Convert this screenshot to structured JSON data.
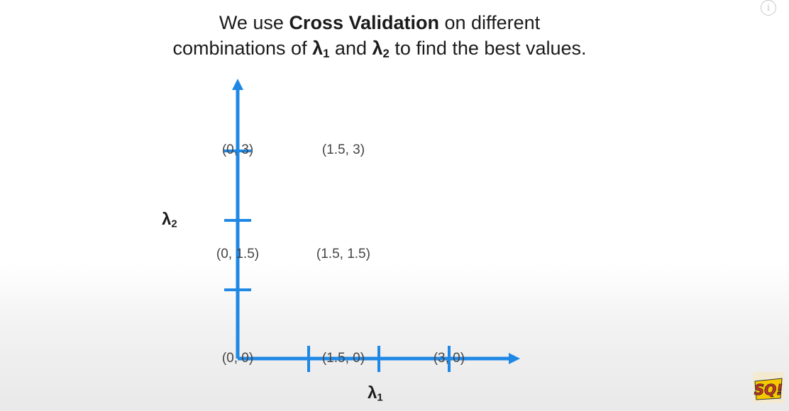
{
  "title": {
    "line1_pre": "We use ",
    "line1_bold": "Cross Validation",
    "line1_post": " on different",
    "line2_pre": "combinations of ",
    "lambda": "λ",
    "sub1": "1",
    "line2_mid": " and ",
    "sub2": "2",
    "line2_post": " to find the best values."
  },
  "axes": {
    "x_label_symbol": "λ",
    "x_label_sub": "1",
    "y_label_symbol": "λ",
    "y_label_sub": "2",
    "color": "#1f88e5"
  },
  "points": [
    {
      "label": "(0, 3)",
      "lambda1": 0,
      "lambda2": 3
    },
    {
      "label": "(1.5, 3)",
      "lambda1": 1.5,
      "lambda2": 3
    },
    {
      "label": "(0, 1.5)",
      "lambda1": 0,
      "lambda2": 1.5
    },
    {
      "label": "(1.5, 1.5)",
      "lambda1": 1.5,
      "lambda2": 1.5
    },
    {
      "label": "(0, 0)",
      "lambda1": 0,
      "lambda2": 0
    },
    {
      "label": "(1.5, 0)",
      "lambda1": 1.5,
      "lambda2": 0
    },
    {
      "label": "(3, 0)",
      "lambda1": 3,
      "lambda2": 0
    }
  ],
  "icons": {
    "info": "info-icon",
    "logo": "statquest-logo-icon"
  },
  "logo": {
    "text": "SQ!"
  }
}
